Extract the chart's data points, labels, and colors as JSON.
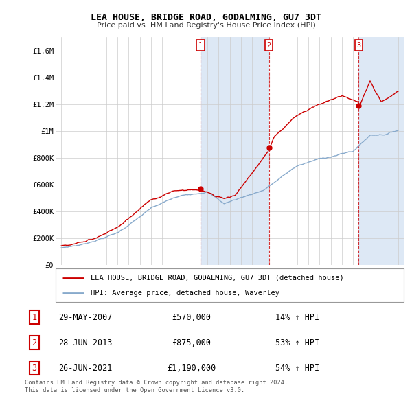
{
  "title": "LEA HOUSE, BRIDGE ROAD, GODALMING, GU7 3DT",
  "subtitle": "Price paid vs. HM Land Registry's House Price Index (HPI)",
  "ylim": [
    0,
    1700000
  ],
  "yticks": [
    0,
    200000,
    400000,
    600000,
    800000,
    1000000,
    1200000,
    1400000,
    1600000
  ],
  "ytick_labels": [
    "£0",
    "£200K",
    "£400K",
    "£600K",
    "£800K",
    "£1M",
    "£1.2M",
    "£1.4M",
    "£1.6M"
  ],
  "x_start_year": 1995,
  "x_end_year": 2025,
  "sales": [
    {
      "label": "1",
      "date": "29-MAY-2007",
      "year": 2007.41,
      "price": 570000,
      "hpi_pct": "14% ↑ HPI"
    },
    {
      "label": "2",
      "date": "28-JUN-2013",
      "year": 2013.49,
      "price": 875000,
      "hpi_pct": "53% ↑ HPI"
    },
    {
      "label": "3",
      "date": "26-JUN-2021",
      "year": 2021.49,
      "price": 1190000,
      "hpi_pct": "54% ↑ HPI"
    }
  ],
  "house_color": "#cc0000",
  "hpi_color": "#88aacc",
  "legend_house": "LEA HOUSE, BRIDGE ROAD, GODALMING, GU7 3DT (detached house)",
  "legend_hpi": "HPI: Average price, detached house, Waverley",
  "footnote": "Contains HM Land Registry data © Crown copyright and database right 2024.\nThis data is licensed under the Open Government Licence v3.0.",
  "bg_shading_color": "#dde8f5",
  "plot_bg_color": "#ffffff",
  "grid_color": "#cccccc"
}
